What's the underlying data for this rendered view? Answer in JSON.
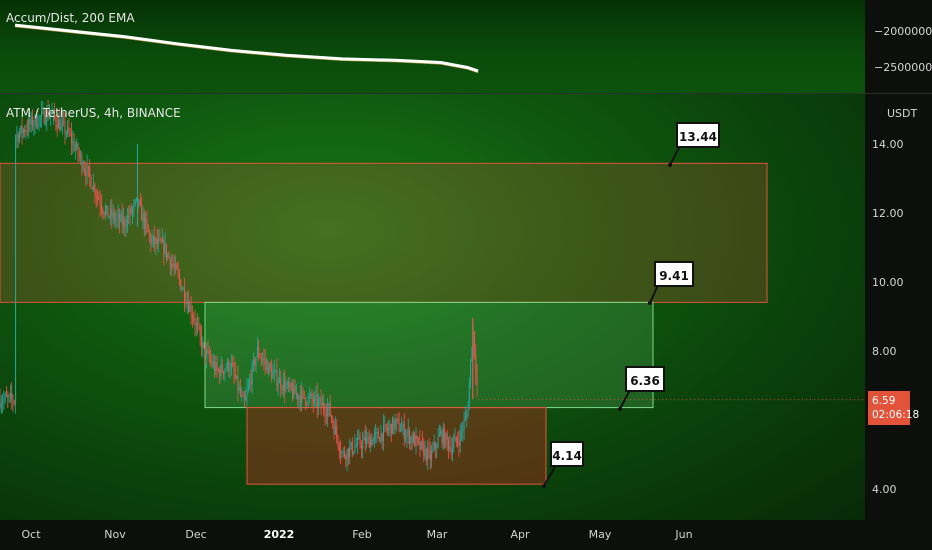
{
  "indicator": {
    "title": "Accum/Dist, 200 EMA",
    "ticks": [
      "−20000000.00",
      "−25000000.00"
    ]
  },
  "chart": {
    "symbol_title": "ATM / TetherUS, 4h, BINANCE",
    "currency": "USDT",
    "last_price": "6.59",
    "countdown": "02:06:18",
    "colors": {
      "up": "#26a69a",
      "down": "#ef5350",
      "supply_zone": "#e2533a",
      "demand_zone": "#e2533a",
      "mid_zone": "#7ed88a"
    }
  },
  "chart_data": {
    "type": "candlestick",
    "y_ticks": [
      "14.00",
      "12.00",
      "10.00",
      "8.00",
      "6.00",
      "4.00"
    ],
    "x_ticks": [
      "Oct",
      "Nov",
      "Dec",
      "2022",
      "Feb",
      "Mar",
      "Apr",
      "May",
      "Jun"
    ],
    "ylim": [
      3.4,
      15.0
    ],
    "zones": [
      {
        "name": "upper",
        "top": 13.44,
        "bottom": 9.41
      },
      {
        "name": "middle",
        "top": 9.41,
        "bottom": 6.36
      },
      {
        "name": "lower",
        "top": 6.36,
        "bottom": 4.14
      }
    ],
    "callouts": [
      "13.44",
      "9.41",
      "6.36",
      "4.14"
    ],
    "price_path": [
      [
        "2021-09-25",
        14.2
      ],
      [
        "2021-10-01",
        14.6
      ],
      [
        "2021-10-08",
        14.9
      ],
      [
        "2021-10-15",
        14.3
      ],
      [
        "2021-10-22",
        13.2
      ],
      [
        "2021-10-29",
        12.0
      ],
      [
        "2021-11-05",
        11.7
      ],
      [
        "2021-11-10",
        12.3
      ],
      [
        "2021-11-15",
        11.2
      ],
      [
        "2021-11-20",
        11.0
      ],
      [
        "2021-11-25",
        10.2
      ],
      [
        "2021-12-01",
        9.0
      ],
      [
        "2021-12-05",
        8.0
      ],
      [
        "2021-12-10",
        7.4
      ],
      [
        "2021-12-15",
        7.6
      ],
      [
        "2021-12-20",
        6.4
      ],
      [
        "2021-12-25",
        8.0
      ],
      [
        "2021-12-31",
        7.3
      ],
      [
        "2022-01-07",
        6.8
      ],
      [
        "2022-01-14",
        6.6
      ],
      [
        "2022-01-21",
        6.3
      ],
      [
        "2022-01-26",
        5.0
      ],
      [
        "2022-02-01",
        5.3
      ],
      [
        "2022-02-08",
        5.5
      ],
      [
        "2022-02-15",
        5.9
      ],
      [
        "2022-02-22",
        5.4
      ],
      [
        "2022-02-28",
        4.9
      ],
      [
        "2022-03-04",
        5.6
      ],
      [
        "2022-03-08",
        5.2
      ],
      [
        "2022-03-11",
        5.5
      ],
      [
        "2022-03-14",
        6.2
      ],
      [
        "2022-03-16",
        8.7
      ],
      [
        "2022-03-18",
        6.59
      ]
    ],
    "accum_dist_path": [
      [
        "2021-09-25",
        -19800000
      ],
      [
        "2021-10-15",
        -20600000
      ],
      [
        "2021-11-05",
        -21400000
      ],
      [
        "2021-11-25",
        -22400000
      ],
      [
        "2021-12-15",
        -23300000
      ],
      [
        "2022-01-05",
        -24000000
      ],
      [
        "2022-01-26",
        -24500000
      ],
      [
        "2022-02-15",
        -24700000
      ],
      [
        "2022-03-04",
        -25000000
      ],
      [
        "2022-03-14",
        -25700000
      ],
      [
        "2022-03-18",
        -26200000
      ]
    ]
  },
  "callout_labels": {
    "c1": "13.44",
    "c2": "9.41",
    "c3": "6.36",
    "c4": "4.14"
  }
}
